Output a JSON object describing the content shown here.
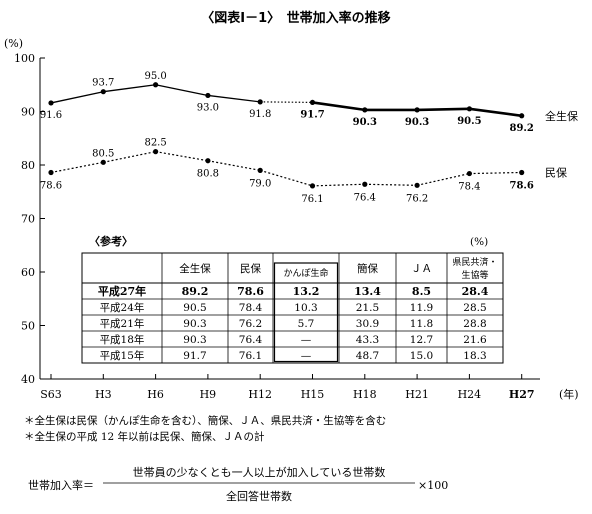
{
  "title": "〈図表Ⅰ－1〉　世帯加入率の推移",
  "chart_data": {
    "type": "line",
    "yunit": "(%)",
    "ylim": [
      40,
      100
    ],
    "yticks": [
      40,
      50,
      60,
      70,
      80,
      90,
      100
    ],
    "categories": [
      "S63",
      "H3",
      "H6",
      "H9",
      "H12",
      "H15",
      "H18",
      "H21",
      "H24",
      "H27"
    ],
    "xunit": "(年)",
    "series": [
      {
        "name": "全生保",
        "values": [
          91.6,
          93.7,
          95.0,
          93.0,
          91.8,
          91.7,
          90.3,
          90.3,
          90.5,
          89.2
        ],
        "labels": [
          "91.6",
          "93.7",
          "95.0",
          "93.0",
          "91.8",
          "91.7",
          "90.3",
          "90.3",
          "90.5",
          "89.2"
        ],
        "style": "solid, dotted segment H12–H15, bold from H15"
      },
      {
        "name": "民保",
        "values": [
          78.6,
          80.5,
          82.5,
          80.8,
          79.0,
          76.1,
          76.4,
          76.2,
          78.4,
          78.6
        ],
        "labels": [
          "78.6",
          "80.5",
          "82.5",
          "80.8",
          "79.0",
          "76.1",
          "76.4",
          "76.2",
          "78.4",
          "78.6"
        ],
        "style": "dotted"
      }
    ],
    "grid": false
  },
  "ref_table": {
    "title": "〈参考〉",
    "unit": "(%)",
    "headers": [
      "全生保",
      "民保",
      "かんぽ生命",
      "簡保",
      "ＪＡ",
      "県民共済・生協等"
    ],
    "rows": [
      {
        "year": "平成27年",
        "cells": [
          "89.2",
          "78.6",
          "13.2",
          "13.4",
          "8.5",
          "28.4"
        ]
      },
      {
        "year": "平成24年",
        "cells": [
          "90.5",
          "78.4",
          "10.3",
          "21.5",
          "11.9",
          "28.5"
        ]
      },
      {
        "year": "平成21年",
        "cells": [
          "90.3",
          "76.2",
          "5.7",
          "30.9",
          "11.8",
          "28.8"
        ]
      },
      {
        "year": "平成18年",
        "cells": [
          "90.3",
          "76.4",
          "—",
          "43.3",
          "12.7",
          "21.6"
        ]
      },
      {
        "year": "平成15年",
        "cells": [
          "91.7",
          "76.1",
          "—",
          "48.7",
          "15.0",
          "18.3"
        ]
      }
    ]
  },
  "notes": [
    "＊全生保は民保（かんぽ生命を含む）、簡保、ＪＡ、県民共済・生協等を含む",
    "＊全生保の平成 12 年以前は民保、簡保、ＪＡの計"
  ],
  "formula": {
    "lhs": "世帯加入率＝",
    "numerator": "世帯員の少なくとも一人以上が加入している世帯数",
    "denominator": "全回答世帯数",
    "suffix": "×100"
  }
}
